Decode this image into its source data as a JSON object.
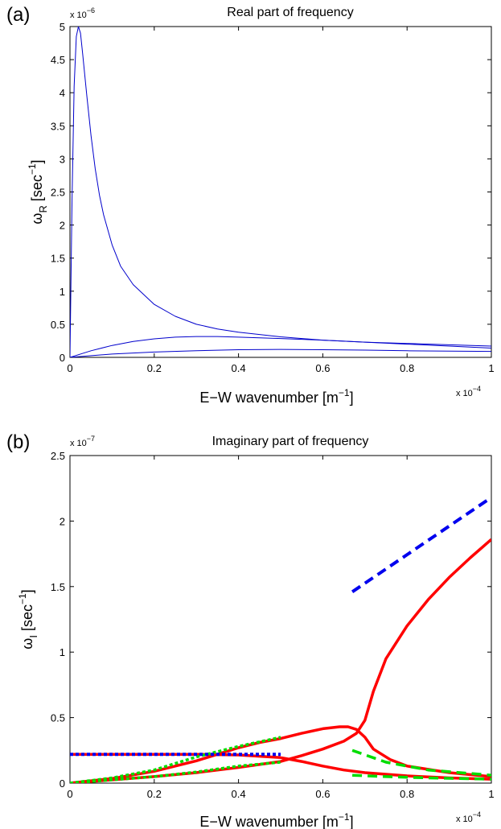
{
  "chart_data": [
    {
      "panel_label": "(a)",
      "type": "line",
      "title": "Real part of frequency",
      "xlabel": "E−W wavenumber [m",
      "xlabel_sup": "−1",
      "xlabel_end": "]",
      "ylabel": "ω",
      "ylabel_sub": "R",
      "ylabel_rest": " [sec",
      "ylabel_sup": "−1",
      "ylabel_end": "]",
      "x_multiplier": "x 10",
      "x_multiplier_exp": "−4",
      "y_multiplier": "x 10",
      "y_multiplier_exp": "−6",
      "xlim": [
        0,
        1
      ],
      "ylim": [
        0,
        5
      ],
      "xticks": [
        "0",
        "0.2",
        "0.4",
        "0.6",
        "0.8",
        "1"
      ],
      "yticks": [
        "0",
        "0.5",
        "1",
        "1.5",
        "2",
        "2.5",
        "3",
        "3.5",
        "4",
        "4.5",
        "5"
      ],
      "series": [
        {
          "color": "#0000cc",
          "style": "solid",
          "width": 1,
          "points": [
            [
              0,
              0
            ],
            [
              0.005,
              2.4
            ],
            [
              0.01,
              4.1
            ],
            [
              0.015,
              4.85
            ],
            [
              0.02,
              5.0
            ],
            [
              0.025,
              4.9
            ],
            [
              0.03,
              4.6
            ],
            [
              0.04,
              3.95
            ],
            [
              0.05,
              3.35
            ],
            [
              0.06,
              2.85
            ],
            [
              0.07,
              2.45
            ],
            [
              0.08,
              2.15
            ],
            [
              0.1,
              1.7
            ],
            [
              0.12,
              1.38
            ],
            [
              0.15,
              1.1
            ],
            [
              0.2,
              0.8
            ],
            [
              0.25,
              0.62
            ],
            [
              0.3,
              0.5
            ],
            [
              0.35,
              0.43
            ],
            [
              0.4,
              0.38
            ],
            [
              0.5,
              0.31
            ],
            [
              0.6,
              0.26
            ],
            [
              0.7,
              0.23
            ],
            [
              0.8,
              0.21
            ],
            [
              0.9,
              0.19
            ],
            [
              1.0,
              0.17
            ]
          ]
        },
        {
          "color": "#0000cc",
          "style": "solid",
          "width": 1,
          "points": [
            [
              0,
              0
            ],
            [
              0.05,
              0.1
            ],
            [
              0.1,
              0.18
            ],
            [
              0.15,
              0.24
            ],
            [
              0.2,
              0.28
            ],
            [
              0.25,
              0.305
            ],
            [
              0.3,
              0.315
            ],
            [
              0.35,
              0.315
            ],
            [
              0.4,
              0.305
            ],
            [
              0.5,
              0.285
            ],
            [
              0.6,
              0.26
            ],
            [
              0.7,
              0.23
            ],
            [
              0.8,
              0.2
            ],
            [
              0.9,
              0.17
            ],
            [
              1.0,
              0.14
            ]
          ]
        },
        {
          "color": "#0000cc",
          "style": "solid",
          "width": 1,
          "points": [
            [
              0,
              0
            ],
            [
              0.1,
              0.05
            ],
            [
              0.2,
              0.08
            ],
            [
              0.3,
              0.1
            ],
            [
              0.4,
              0.115
            ],
            [
              0.5,
              0.12
            ],
            [
              0.6,
              0.115
            ],
            [
              0.7,
              0.11
            ],
            [
              0.8,
              0.1
            ],
            [
              0.9,
              0.095
            ],
            [
              1.0,
              0.09
            ]
          ]
        }
      ]
    },
    {
      "panel_label": "(b)",
      "type": "line",
      "title": "Imaginary part of frequency",
      "xlabel": "E−W wavenumber [m",
      "xlabel_sup": "−1",
      "xlabel_end": "]",
      "ylabel": "ω",
      "ylabel_sub": "I",
      "ylabel_rest": " [sec",
      "ylabel_sup": "−1",
      "ylabel_end": "]",
      "x_multiplier": "x 10",
      "x_multiplier_exp": "−4",
      "y_multiplier": "x 10",
      "y_multiplier_exp": "−7",
      "xlim": [
        0,
        1
      ],
      "ylim": [
        0,
        2.5
      ],
      "xticks": [
        "0",
        "0.2",
        "0.4",
        "0.6",
        "0.8",
        "1"
      ],
      "yticks": [
        "0",
        "0.5",
        "1",
        "1.5",
        "2",
        "2.5"
      ],
      "series": [
        {
          "color": "#ff0000",
          "style": "solid",
          "width": 3.5,
          "points": [
            [
              0,
              0.22
            ],
            [
              0.1,
              0.22
            ],
            [
              0.2,
              0.22
            ],
            [
              0.3,
              0.22
            ],
            [
              0.4,
              0.215
            ],
            [
              0.45,
              0.205
            ],
            [
              0.5,
              0.195
            ]
          ]
        },
        {
          "color": "#ff0000",
          "style": "solid",
          "width": 3.5,
          "points": [
            [
              0,
              0
            ],
            [
              0.1,
              0.035
            ],
            [
              0.2,
              0.09
            ],
            [
              0.3,
              0.17
            ],
            [
              0.35,
              0.22
            ],
            [
              0.4,
              0.27
            ],
            [
              0.45,
              0.31
            ],
            [
              0.5,
              0.34
            ],
            [
              0.55,
              0.38
            ],
            [
              0.6,
              0.415
            ],
            [
              0.64,
              0.43
            ],
            [
              0.66,
              0.43
            ],
            [
              0.68,
              0.41
            ],
            [
              0.7,
              0.35
            ],
            [
              0.72,
              0.26
            ],
            [
              0.76,
              0.18
            ],
            [
              0.8,
              0.13
            ],
            [
              0.9,
              0.08
            ],
            [
              1.0,
              0.05
            ]
          ]
        },
        {
          "color": "#ff0000",
          "style": "solid",
          "width": 3.5,
          "points": [
            [
              0,
              0
            ],
            [
              0.1,
              0.025
            ],
            [
              0.2,
              0.05
            ],
            [
              0.3,
              0.08
            ],
            [
              0.4,
              0.12
            ],
            [
              0.5,
              0.165
            ],
            [
              0.55,
              0.21
            ],
            [
              0.6,
              0.26
            ],
            [
              0.65,
              0.32
            ],
            [
              0.68,
              0.38
            ],
            [
              0.7,
              0.48
            ],
            [
              0.72,
              0.7
            ],
            [
              0.75,
              0.95
            ],
            [
              0.8,
              1.2
            ],
            [
              0.85,
              1.4
            ],
            [
              0.9,
              1.57
            ],
            [
              0.95,
              1.72
            ],
            [
              1.0,
              1.86
            ]
          ]
        },
        {
          "color": "#ff0000",
          "style": "solid",
          "width": 3.5,
          "points": [
            [
              0.5,
              0.195
            ],
            [
              0.55,
              0.165
            ],
            [
              0.6,
              0.13
            ],
            [
              0.65,
              0.1
            ],
            [
              0.7,
              0.08
            ],
            [
              0.8,
              0.055
            ],
            [
              0.9,
              0.04
            ],
            [
              1.0,
              0.03
            ]
          ]
        },
        {
          "color": "#00dd00",
          "style": "dotted",
          "width": 3.5,
          "points": [
            [
              0,
              0
            ],
            [
              0.1,
              0.04
            ],
            [
              0.2,
              0.1
            ],
            [
              0.3,
              0.2
            ],
            [
              0.4,
              0.28
            ],
            [
              0.5,
              0.35
            ]
          ]
        },
        {
          "color": "#00dd00",
          "style": "dotted",
          "width": 3.5,
          "points": [
            [
              0,
              0
            ],
            [
              0.1,
              0.025
            ],
            [
              0.2,
              0.05
            ],
            [
              0.3,
              0.085
            ],
            [
              0.4,
              0.13
            ],
            [
              0.5,
              0.16
            ]
          ]
        },
        {
          "color": "#00dd00",
          "style": "dashed",
          "width": 3.5,
          "points": [
            [
              0.67,
              0.25
            ],
            [
              0.75,
              0.16
            ],
            [
              0.85,
              0.1
            ],
            [
              1.0,
              0.06
            ]
          ]
        },
        {
          "color": "#00dd00",
          "style": "dashed",
          "width": 3.5,
          "points": [
            [
              0.67,
              0.06
            ],
            [
              0.75,
              0.05
            ],
            [
              0.85,
              0.04
            ],
            [
              1.0,
              0.03
            ]
          ]
        },
        {
          "color": "#0000ee",
          "style": "dotted",
          "width": 4,
          "points": [
            [
              0,
              0.22
            ],
            [
              0.5,
              0.22
            ]
          ]
        },
        {
          "color": "#0000ee",
          "style": "dashed",
          "width": 4,
          "points": [
            [
              0.67,
              1.46
            ],
            [
              1.0,
              2.18
            ]
          ]
        }
      ]
    }
  ]
}
